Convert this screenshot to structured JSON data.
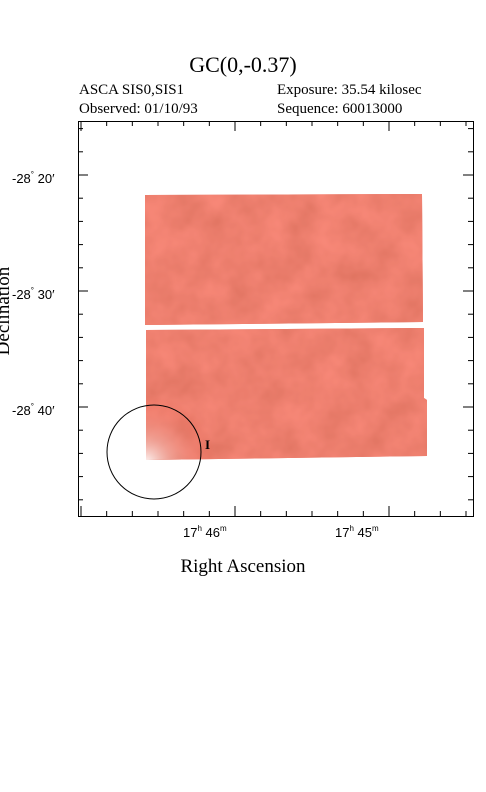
{
  "header": {
    "title": "GC(0,-0.37)",
    "instrument": "ASCA SIS0,SIS1",
    "exposure": "Exposure: 35.54 kilosec",
    "observed": "Observed: 01/10/93",
    "sequence": "Sequence: 60013000"
  },
  "axes": {
    "xlabel": "Right Ascension",
    "ylabel": "Declination",
    "y_ticks": [
      {
        "deg": "-28",
        "min": "20"
      },
      {
        "deg": "-28",
        "min": "30"
      },
      {
        "deg": "-28",
        "min": "40"
      }
    ],
    "x_ticks": [
      {
        "h": "17",
        "m": "46"
      },
      {
        "h": "17",
        "m": "45"
      }
    ]
  },
  "marker": {
    "label": "I"
  },
  "colors": {
    "image_base": "#e0452f",
    "frame": "#000000"
  }
}
